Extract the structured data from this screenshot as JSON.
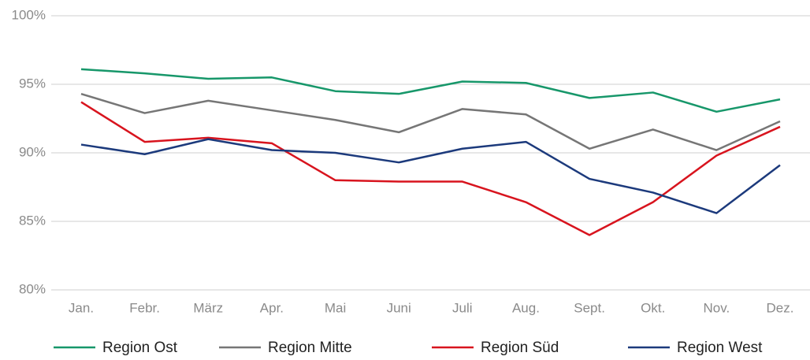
{
  "chart_data": {
    "type": "line",
    "categories": [
      "Jan.",
      "Febr.",
      "März",
      "Apr.",
      "Mai",
      "Juni",
      "Juli",
      "Aug.",
      "Sept.",
      "Okt.",
      "Nov.",
      "Dez."
    ],
    "series": [
      {
        "name": "Region Ost",
        "color": "#17976a",
        "values": [
          96.1,
          95.8,
          95.4,
          95.5,
          94.5,
          94.3,
          95.2,
          95.1,
          94.0,
          94.4,
          93.0,
          93.9
        ]
      },
      {
        "name": "Region Mitte",
        "color": "#767676",
        "values": [
          94.3,
          92.9,
          93.8,
          93.1,
          92.4,
          91.5,
          93.2,
          92.8,
          90.3,
          91.7,
          90.2,
          92.3
        ]
      },
      {
        "name": "Region Süd",
        "color": "#d8141e",
        "values": [
          93.7,
          90.8,
          91.1,
          90.7,
          88.0,
          87.9,
          87.9,
          86.4,
          84.0,
          86.4,
          89.8,
          91.9
        ]
      },
      {
        "name": "Region West",
        "color": "#1c3a7c",
        "values": [
          90.6,
          89.9,
          91.0,
          90.2,
          90.0,
          89.3,
          90.3,
          90.8,
          88.1,
          87.1,
          85.6,
          89.1
        ]
      }
    ],
    "ylim": [
      80,
      100
    ],
    "yticks": [
      {
        "value": 80,
        "label": "80%"
      },
      {
        "value": 85,
        "label": "85%"
      },
      {
        "value": 90,
        "label": "90%"
      },
      {
        "value": 95,
        "label": "95%"
      },
      {
        "value": 100,
        "label": "100%"
      }
    ],
    "grid": true,
    "legend": "bottom"
  }
}
